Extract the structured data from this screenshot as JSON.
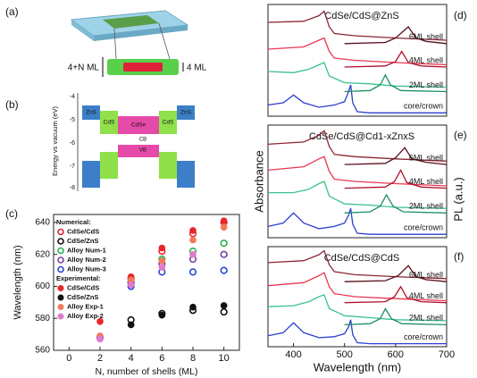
{
  "panel_labels": [
    "(a)",
    "(b)",
    "(c)",
    "(d)",
    "(e)",
    "(f)"
  ],
  "diagram_a": {
    "labels": [
      "4+N ML",
      "4 ML"
    ]
  },
  "diagram_b": {
    "ylabel": "Energy vs vacuum (eV)",
    "yticks": [
      -4,
      -5,
      -6,
      -7,
      -8
    ],
    "layers": [
      "ZnS",
      "CdS",
      "CdSe",
      "CdS",
      "ZnS"
    ],
    "bands": [
      "CB",
      "VB"
    ]
  },
  "chart_data": [
    {
      "type": "scatter",
      "xlabel": "N, number of shells (ML)",
      "ylabel": "Wavelength (nm)",
      "xlim": [
        -1,
        11
      ],
      "xticks": [
        0,
        2,
        4,
        6,
        8,
        10
      ],
      "ylim": [
        560,
        645
      ],
      "yticks": [
        560,
        580,
        600,
        620,
        640
      ],
      "groups": [
        {
          "name": "Numerical:",
          "filled": false,
          "series": [
            {
              "name": "CdSe/CdS",
              "color": "#e8262b",
              "x": [
                2,
                4,
                6,
                8,
                10
              ],
              "values": [
                null,
                605,
                622,
                633,
                640
              ]
            },
            {
              "name": "CdSe/ZnS",
              "color": "#111111",
              "x": [
                2,
                4,
                6,
                8,
                10
              ],
              "values": [
                null,
                579,
                583,
                585,
                584
              ]
            },
            {
              "name": "Alloy Num-1",
              "color": "#2ab04a",
              "x": [
                2,
                4,
                6,
                8,
                10
              ],
              "values": [
                null,
                603,
                617,
                622,
                627
              ]
            },
            {
              "name": "Alloy Num-2",
              "color": "#7b3fa0",
              "x": [
                2,
                4,
                6,
                8,
                10
              ],
              "values": [
                null,
                602,
                614,
                617,
                620
              ]
            },
            {
              "name": "Alloy Num-3",
              "color": "#2948d8",
              "x": [
                2,
                4,
                6,
                8,
                10
              ],
              "values": [
                568,
                600,
                609,
                609,
                610
              ]
            }
          ]
        },
        {
          "name": "Experimental:",
          "filled": true,
          "series": [
            {
              "name": "CdSe/CdS",
              "color": "#e8262b",
              "x": [
                2,
                4,
                6,
                8,
                10
              ],
              "values": [
                578,
                606,
                624,
                635,
                641
              ]
            },
            {
              "name": "CdSe/ZnS",
              "color": "#111111",
              "x": [
                2,
                4,
                6,
                8,
                10
              ],
              "values": [
                null,
                576,
                582,
                587,
                588
              ]
            },
            {
              "name": "Alloy Exp-1",
              "color": "#f07a5a",
              "x": [
                2,
                4,
                6,
                8,
                10
              ],
              "values": [
                569,
                604,
                616,
                629,
                637
              ]
            },
            {
              "name": "Alloy Exp-2",
              "color": "#e07ad0",
              "x": [
                2,
                4,
                6,
                8,
                10
              ],
              "values": [
                567,
                601,
                612,
                620,
                null
              ]
            }
          ]
        }
      ]
    },
    {
      "type": "line",
      "title": "CdSe/CdS@ZnS",
      "xlim": [
        350,
        700
      ],
      "ylim": [
        0,
        10
      ],
      "series": [
        {
          "name": "core/crown",
          "color": "#2b3fd0",
          "x": [
            350,
            380,
            400,
            420,
            450,
            480,
            500,
            508,
            512,
            516,
            525,
            550,
            700
          ],
          "values": [
            1.0,
            1.2,
            1.9,
            1.2,
            0.8,
            1.0,
            1.3,
            2.2,
            2.8,
            1.2,
            0.4,
            0.3,
            0.3
          ]
        },
        {
          "color": "#3cc18c",
          "x": [
            350,
            400,
            430,
            450,
            460,
            470,
            500,
            550,
            600,
            700
          ],
          "values": [
            4.0,
            3.9,
            4.2,
            4.6,
            4.8,
            3.6,
            3.0,
            2.9,
            2.7,
            2.6
          ]
        },
        {
          "name": "2ML shell",
          "color": "#1a8f60",
          "x": [
            500,
            550,
            570,
            580,
            590,
            610,
            700
          ],
          "values": [
            2.2,
            2.3,
            2.8,
            3.7,
            2.8,
            2.3,
            2.2
          ]
        },
        {
          "color": "#e8384f",
          "x": [
            350,
            420,
            450,
            460,
            470,
            480,
            520,
            600,
            700
          ],
          "values": [
            6.0,
            6.2,
            6.8,
            7.0,
            5.8,
            5.2,
            5.0,
            4.8,
            4.6
          ]
        },
        {
          "name": "4ML shell",
          "color": "#b0102a",
          "x": [
            500,
            580,
            600,
            612,
            625,
            650,
            700
          ],
          "values": [
            4.4,
            4.5,
            4.9,
            5.8,
            4.8,
            4.5,
            4.4
          ]
        },
        {
          "color": "#8b2635",
          "x": [
            350,
            420,
            450,
            460,
            470,
            480,
            520,
            600,
            700
          ],
          "values": [
            8.4,
            8.5,
            9.0,
            9.4,
            8.0,
            7.4,
            7.2,
            7.0,
            6.8
          ]
        },
        {
          "name": "6ML shell",
          "color": "#5a0d1a",
          "x": [
            500,
            580,
            600,
            625,
            640,
            660,
            700
          ],
          "values": [
            6.5,
            6.6,
            7.0,
            8.0,
            7.0,
            6.7,
            6.5
          ]
        }
      ]
    },
    {
      "type": "line",
      "title": "CdSe/CdS@Cd1-xZnxS",
      "ylabel": "Absorbance",
      "y2label": "PL (a.u.)",
      "xlim": [
        350,
        700
      ],
      "ylim": [
        0,
        10
      ],
      "series": [
        {
          "name": "core/crown",
          "color": "#2b3fd0",
          "x": [
            350,
            380,
            400,
            420,
            450,
            480,
            500,
            508,
            512,
            516,
            525,
            550,
            700
          ],
          "values": [
            1.0,
            1.3,
            2.2,
            1.3,
            0.8,
            1.0,
            1.3,
            2.0,
            2.6,
            1.2,
            0.4,
            0.3,
            0.3
          ]
        },
        {
          "color": "#3cc18c",
          "x": [
            350,
            400,
            430,
            450,
            460,
            470,
            500,
            550,
            600,
            700
          ],
          "values": [
            4.0,
            4.0,
            4.3,
            4.8,
            5.0,
            3.7,
            3.0,
            2.9,
            2.7,
            2.6
          ]
        },
        {
          "name": "2ML shell",
          "color": "#1a8f60",
          "x": [
            500,
            550,
            570,
            582,
            595,
            615,
            700
          ],
          "values": [
            2.2,
            2.3,
            2.8,
            3.8,
            2.8,
            2.3,
            2.2
          ]
        },
        {
          "color": "#e8384f",
          "x": [
            350,
            420,
            450,
            460,
            470,
            480,
            520,
            600,
            700
          ],
          "values": [
            6.0,
            6.3,
            7.0,
            7.2,
            5.9,
            5.2,
            5.0,
            4.8,
            4.6
          ]
        },
        {
          "name": "4ML shell",
          "color": "#b0102a",
          "x": [
            500,
            580,
            598,
            610,
            622,
            650,
            700
          ],
          "values": [
            4.4,
            4.5,
            5.0,
            6.0,
            4.9,
            4.5,
            4.4
          ]
        },
        {
          "color": "#8b2635",
          "x": [
            350,
            420,
            450,
            460,
            470,
            480,
            520,
            600,
            700
          ],
          "values": [
            8.3,
            8.5,
            9.1,
            9.5,
            8.1,
            7.4,
            7.2,
            7.0,
            6.8
          ]
        },
        {
          "name": "6ML shell",
          "color": "#5a0d1a",
          "x": [
            500,
            580,
            600,
            618,
            632,
            660,
            700
          ],
          "values": [
            6.5,
            6.6,
            7.1,
            8.0,
            7.0,
            6.7,
            6.5
          ]
        }
      ]
    },
    {
      "type": "line",
      "title": "CdSe/CdS@CdS",
      "xlabel": "Wavelength (nm)",
      "xlim": [
        350,
        700
      ],
      "xticks": [
        400,
        500,
        600,
        700
      ],
      "ylim": [
        0,
        10
      ],
      "series": [
        {
          "name": "core/crown",
          "color": "#2b3fd0",
          "x": [
            350,
            380,
            400,
            420,
            450,
            480,
            500,
            508,
            512,
            516,
            525,
            550,
            700
          ],
          "values": [
            1.1,
            1.4,
            2.4,
            1.4,
            0.9,
            1.0,
            1.3,
            2.0,
            2.7,
            1.2,
            0.4,
            0.3,
            0.3
          ]
        },
        {
          "color": "#3cc18c",
          "x": [
            350,
            400,
            430,
            450,
            460,
            470,
            500,
            550,
            600,
            700
          ],
          "values": [
            4.0,
            4.1,
            4.5,
            5.0,
            5.2,
            3.8,
            3.1,
            2.9,
            2.7,
            2.6
          ]
        },
        {
          "name": "2ML shell",
          "color": "#1a8f60",
          "x": [
            500,
            550,
            570,
            580,
            592,
            612,
            700
          ],
          "values": [
            2.2,
            2.3,
            2.8,
            3.8,
            2.8,
            2.3,
            2.2
          ]
        },
        {
          "color": "#e8384f",
          "x": [
            350,
            420,
            450,
            460,
            470,
            480,
            520,
            600,
            700
          ],
          "values": [
            6.1,
            6.4,
            7.1,
            7.4,
            6.0,
            5.3,
            5.0,
            4.8,
            4.6
          ]
        },
        {
          "name": "4ML shell",
          "color": "#b0102a",
          "x": [
            500,
            580,
            598,
            610,
            622,
            650,
            700
          ],
          "values": [
            4.4,
            4.5,
            5.0,
            6.0,
            4.9,
            4.5,
            4.4
          ]
        },
        {
          "color": "#8b2635",
          "x": [
            350,
            420,
            450,
            460,
            470,
            480,
            520,
            600,
            700
          ],
          "values": [
            8.4,
            8.6,
            9.2,
            9.6,
            8.2,
            7.5,
            7.2,
            7.0,
            6.8
          ]
        },
        {
          "name": "6ML shell",
          "color": "#5a0d1a",
          "x": [
            500,
            580,
            605,
            625,
            640,
            660,
            700
          ],
          "values": [
            6.5,
            6.6,
            7.1,
            8.1,
            7.0,
            6.7,
            6.5
          ]
        }
      ]
    }
  ]
}
